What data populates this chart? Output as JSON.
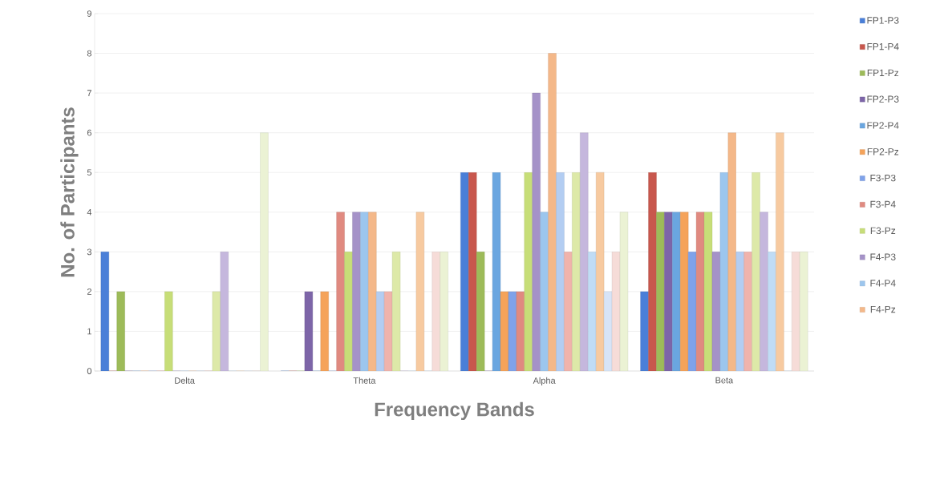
{
  "chart_data": {
    "type": "bar",
    "xlabel": "Frequency Bands",
    "ylabel": "No. of Participants",
    "categories": [
      "Delta",
      "Theta",
      "Alpha",
      "Beta"
    ],
    "ylim": [
      0,
      9
    ],
    "yticks": [
      0,
      1,
      2,
      3,
      4,
      5,
      6,
      7,
      8,
      9
    ],
    "grid": "y",
    "legend": "right",
    "series": [
      {
        "name": "FP1-P3",
        "color": "#4a7fd8",
        "values": [
          3,
          0,
          5,
          2
        ]
      },
      {
        "name": "FP1-P4",
        "color": "#c8574d",
        "values": [
          0,
          0,
          5,
          5
        ]
      },
      {
        "name": "FP1-Pz",
        "color": "#9dbb59",
        "values": [
          2,
          0,
          3,
          4
        ]
      },
      {
        "name": "FP2-P3",
        "color": "#7d65a8",
        "values": [
          0,
          2,
          0,
          4
        ]
      },
      {
        "name": "FP2-P4",
        "color": "#6aa6e0",
        "values": [
          0,
          0,
          5,
          4
        ]
      },
      {
        "name": "FP2-Pz",
        "color": "#f5a35a",
        "values": [
          0,
          2,
          2,
          4
        ]
      },
      {
        "name": "F3-P3",
        "color": "#7fa2ea",
        "values": [
          0,
          0,
          2,
          3
        ]
      },
      {
        "name": "F3-P4",
        "color": "#e08a80",
        "values": [
          0,
          4,
          2,
          4
        ]
      },
      {
        "name": "F3-Pz",
        "color": "#c7de78",
        "values": [
          2,
          3,
          5,
          4
        ]
      },
      {
        "name": "F4-P3",
        "color": "#a592c8",
        "values": [
          0,
          4,
          7,
          3
        ]
      },
      {
        "name": "F4-P4",
        "color": "#9cc6ee",
        "values": [
          0,
          4,
          4,
          5
        ]
      },
      {
        "name": "F4-Pz",
        "color": "#f4b889",
        "values": [
          0,
          4,
          8,
          6
        ]
      },
      {
        "color": "#b3cdf2",
        "values": [
          0,
          2,
          5,
          3
        ]
      },
      {
        "color": "#f0b3ac",
        "values": [
          0,
          2,
          3,
          3
        ]
      },
      {
        "color": "#dde9a8",
        "values": [
          2,
          3,
          5,
          5
        ]
      },
      {
        "color": "#c5b7dd",
        "values": [
          3,
          0,
          6,
          4
        ]
      },
      {
        "color": "#c0dcf5",
        "values": [
          0,
          0,
          3,
          3
        ]
      },
      {
        "color": "#f7caa0",
        "values": [
          0,
          4,
          5,
          6
        ]
      },
      {
        "color": "#d7e4f7",
        "values": [
          0,
          0,
          2,
          0
        ]
      },
      {
        "color": "#f6dcd8",
        "values": [
          0,
          3,
          3,
          3
        ]
      },
      {
        "color": "#ebf2d4",
        "values": [
          6,
          3,
          4,
          3
        ]
      }
    ]
  }
}
